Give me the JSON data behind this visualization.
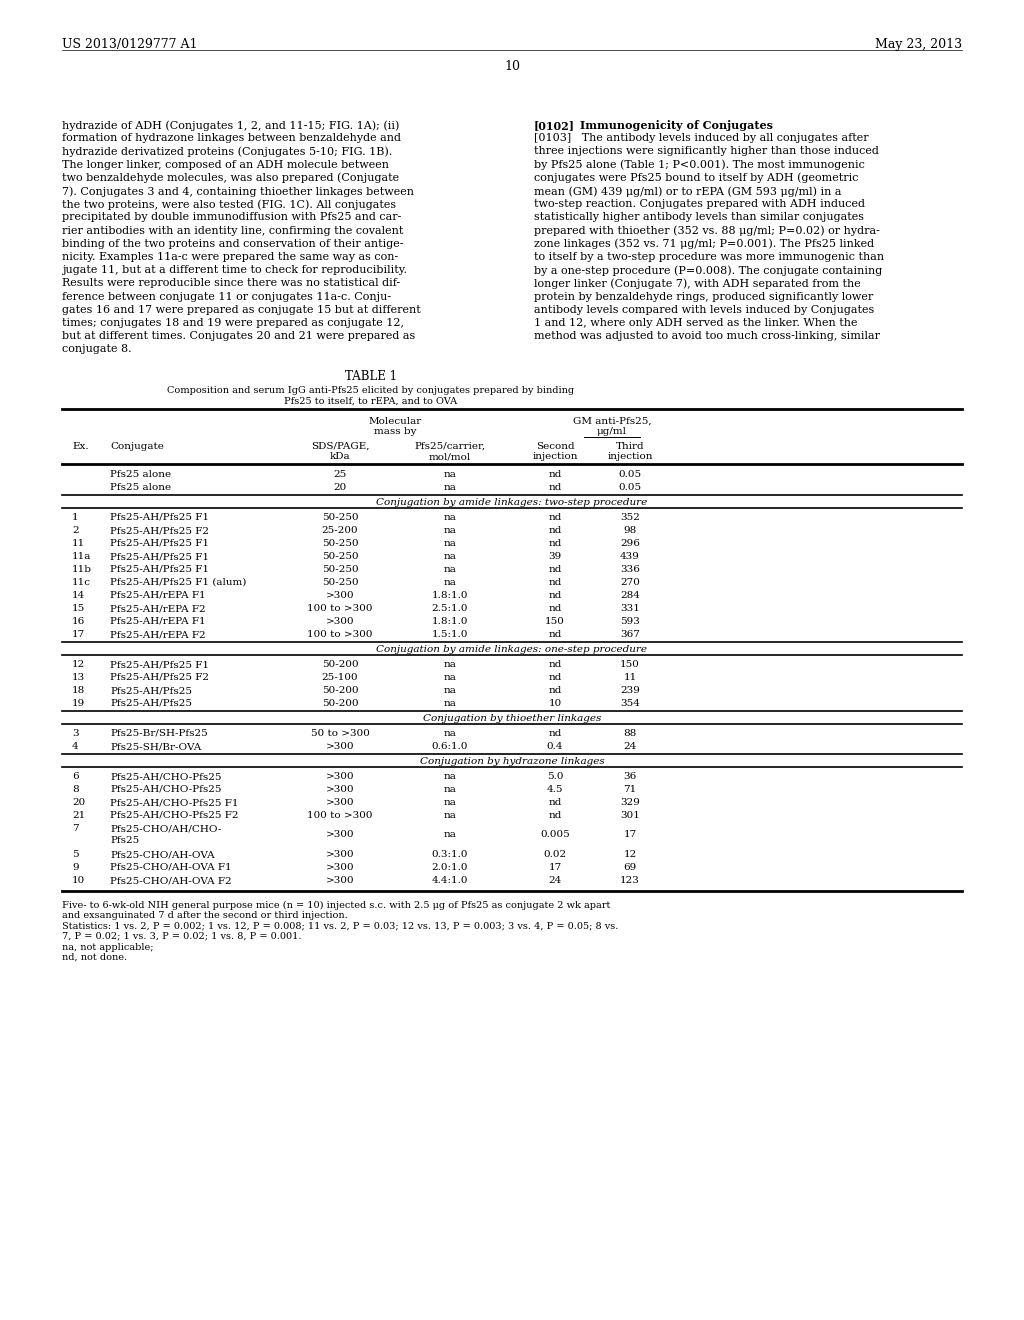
{
  "header_left": "US 2013/0129777 A1",
  "header_right": "May 23, 2013",
  "page_number": "10",
  "left_col_text": [
    "hydrazide of ADH (Conjugates 1, 2, and 11-15; FIG. 1A); (ii)",
    "formation of hydrazone linkages between benzaldehyde and",
    "hydrazide derivatized proteins (Conjugates 5-10; FIG. 1B).",
    "The longer linker, composed of an ADH molecule between",
    "two benzaldehyde molecules, was also prepared (Conjugate",
    "7). Conjugates 3 and 4, containing thioether linkages between",
    "the two proteins, were also tested (FIG. 1C). All conjugates",
    "precipitated by double immunodiffusion with Pfs25 and car-",
    "rier antibodies with an identity line, confirming the covalent",
    "binding of the two proteins and conservation of their antige-",
    "nicity. Examples 11a-c were prepared the same way as con-",
    "jugate 11, but at a different time to check for reproducibility.",
    "Results were reproducible since there was no statistical dif-",
    "ference between conjugate 11 or conjugates 11a-c. Conju-",
    "gates 16 and 17 were prepared as conjugate 15 but at different",
    "times; conjugates 18 and 19 were prepared as conjugate 12,",
    "but at different times. Conjugates 20 and 21 were prepared as",
    "conjugate 8."
  ],
  "right_col_para_ref": "[0102]",
  "right_col_para_title": "    Immunogenicity of Conjugates",
  "right_col_text": [
    "[0103]   The antibody levels induced by all conjugates after",
    "three injections were significantly higher than those induced",
    "by Pfs25 alone (Table 1; P<0.001). The most immunogenic",
    "conjugates were Pfs25 bound to itself by ADH (geometric",
    "mean (GM) 439 μg/ml) or to rEPA (GM 593 μg/ml) in a",
    "two-step reaction. Conjugates prepared with ADH induced",
    "statistically higher antibody levels than similar conjugates",
    "prepared with thioether (352 vs. 88 μg/ml; P=0.02) or hydra-",
    "zone linkages (352 vs. 71 μg/ml; P=0.001). The Pfs25 linked",
    "to itself by a two-step procedure was more immunogenic than",
    "by a one-step procedure (P=0.008). The conjugate containing",
    "longer linker (Conjugate 7), with ADH separated from the",
    "protein by benzaldehyde rings, produced significantly lower",
    "antibody levels compared with levels induced by Conjugates",
    "1 and 12, where only ADH served as the linker. When the",
    "method was adjusted to avoid too much cross-linking, similar"
  ],
  "table_title": "TABLE 1",
  "table_caption_line1": "Composition and serum IgG anti-Pfs25 elicited by conjugates prepared by binding",
  "table_caption_line2": "Pfs25 to itself, to rEPA, and to OVA",
  "table_rows": [
    {
      "ex": "",
      "conjugate": "Pfs25 alone",
      "sdsp": "25",
      "pfs_carrier": "na",
      "second": "nd",
      "third": "0.05"
    },
    {
      "ex": "",
      "conjugate": "Pfs25 alone",
      "sdsp": "20",
      "pfs_carrier": "na",
      "second": "nd",
      "third": "0.05"
    },
    {
      "section": "Conjugation by amide linkages: two-step procedure"
    },
    {
      "ex": "1",
      "conjugate": "Pfs25-AH/Pfs25 F1",
      "sdsp": "50-250",
      "pfs_carrier": "na",
      "second": "nd",
      "third": "352"
    },
    {
      "ex": "2",
      "conjugate": "Pfs25-AH/Pfs25 F2",
      "sdsp": "25-200",
      "pfs_carrier": "na",
      "second": "nd",
      "third": "98"
    },
    {
      "ex": "11",
      "conjugate": "Pfs25-AH/Pfs25 F1",
      "sdsp": "50-250",
      "pfs_carrier": "na",
      "second": "nd",
      "third": "296"
    },
    {
      "ex": "11a",
      "conjugate": "Pfs25-AH/Pfs25 F1",
      "sdsp": "50-250",
      "pfs_carrier": "na",
      "second": "39",
      "third": "439"
    },
    {
      "ex": "11b",
      "conjugate": "Pfs25-AH/Pfs25 F1",
      "sdsp": "50-250",
      "pfs_carrier": "na",
      "second": "nd",
      "third": "336"
    },
    {
      "ex": "11c",
      "conjugate": "Pfs25-AH/Pfs25 F1 (alum)",
      "sdsp": "50-250",
      "pfs_carrier": "na",
      "second": "nd",
      "third": "270"
    },
    {
      "ex": "14",
      "conjugate": "Pfs25-AH/rEPA F1",
      "sdsp": ">300",
      "pfs_carrier": "1.8:1.0",
      "second": "nd",
      "third": "284"
    },
    {
      "ex": "15",
      "conjugate": "Pfs25-AH/rEPA F2",
      "sdsp": "100 to >300",
      "pfs_carrier": "2.5:1.0",
      "second": "nd",
      "third": "331"
    },
    {
      "ex": "16",
      "conjugate": "Pfs25-AH/rEPA F1",
      "sdsp": ">300",
      "pfs_carrier": "1.8:1.0",
      "second": "150",
      "third": "593"
    },
    {
      "ex": "17",
      "conjugate": "Pfs25-AH/rEPA F2",
      "sdsp": "100 to >300",
      "pfs_carrier": "1.5:1.0",
      "second": "nd",
      "third": "367"
    },
    {
      "section": "Conjugation by amide linkages: one-step procedure"
    },
    {
      "ex": "12",
      "conjugate": "Pfs25-AH/Pfs25 F1",
      "sdsp": "50-200",
      "pfs_carrier": "na",
      "second": "nd",
      "third": "150"
    },
    {
      "ex": "13",
      "conjugate": "Pfs25-AH/Pfs25 F2",
      "sdsp": "25-100",
      "pfs_carrier": "na",
      "second": "nd",
      "third": "11"
    },
    {
      "ex": "18",
      "conjugate": "Pfs25-AH/Pfs25",
      "sdsp": "50-200",
      "pfs_carrier": "na",
      "second": "nd",
      "third": "239"
    },
    {
      "ex": "19",
      "conjugate": "Pfs25-AH/Pfs25",
      "sdsp": "50-200",
      "pfs_carrier": "na",
      "second": "10",
      "third": "354"
    },
    {
      "section": "Conjugation by thioether linkages"
    },
    {
      "ex": "3",
      "conjugate": "Pfs25-Br/SH-Pfs25",
      "sdsp": "50 to >300",
      "pfs_carrier": "na",
      "second": "nd",
      "third": "88"
    },
    {
      "ex": "4",
      "conjugate": "Pfs25-SH/Br-OVA",
      "sdsp": ">300",
      "pfs_carrier": "0.6:1.0",
      "second": "0.4",
      "third": "24"
    },
    {
      "section": "Conjugation by hydrazone linkages"
    },
    {
      "ex": "6",
      "conjugate": "Pfs25-AH/CHO-Pfs25",
      "sdsp": ">300",
      "pfs_carrier": "na",
      "second": "5.0",
      "third": "36"
    },
    {
      "ex": "8",
      "conjugate": "Pfs25-AH/CHO-Pfs25",
      "sdsp": ">300",
      "pfs_carrier": "na",
      "second": "4.5",
      "third": "71"
    },
    {
      "ex": "20",
      "conjugate": "Pfs25-AH/CHO-Pfs25 F1",
      "sdsp": ">300",
      "pfs_carrier": "na",
      "second": "nd",
      "third": "329"
    },
    {
      "ex": "21",
      "conjugate": "Pfs25-AH/CHO-Pfs25 F2",
      "sdsp": "100 to >300",
      "pfs_carrier": "na",
      "second": "nd",
      "third": "301"
    },
    {
      "ex": "7",
      "conjugate": "Pfs25-CHO/AH/CHO-",
      "conjugate2": "Pfs25",
      "sdsp": ">300",
      "pfs_carrier": "na",
      "second": "0.005",
      "third": "17"
    },
    {
      "ex": "5",
      "conjugate": "Pfs25-CHO/AH-OVA",
      "sdsp": ">300",
      "pfs_carrier": "0.3:1.0",
      "second": "0.02",
      "third": "12"
    },
    {
      "ex": "9",
      "conjugate": "Pfs25-CHO/AH-OVA F1",
      "sdsp": ">300",
      "pfs_carrier": "2.0:1.0",
      "second": "17",
      "third": "69"
    },
    {
      "ex": "10",
      "conjugate": "Pfs25-CHO/AH-OVA F2",
      "sdsp": ">300",
      "pfs_carrier": "4.4:1.0",
      "second": "24",
      "third": "123"
    }
  ],
  "footnotes": [
    "Five- to 6-wk-old NIH general purpose mice (n = 10) injected s.c. with 2.5 μg of Pfs25 as conjugate 2 wk apart",
    "and exsanguinated 7 d after the second or third injection.",
    "Statistics: 1 vs. 2, P = 0.002; 1 vs. 12, P = 0.008; 11 vs. 2, P = 0.03; 12 vs. 13, P = 0.003; 3 vs. 4, P = 0.05; 8 vs.",
    "7, P = 0.02; 1 vs. 3, P = 0.02; 1 vs. 8, P = 0.001.",
    "na, not applicable;",
    "nd, not done."
  ],
  "bg_color": "#ffffff",
  "text_color": "#000000"
}
